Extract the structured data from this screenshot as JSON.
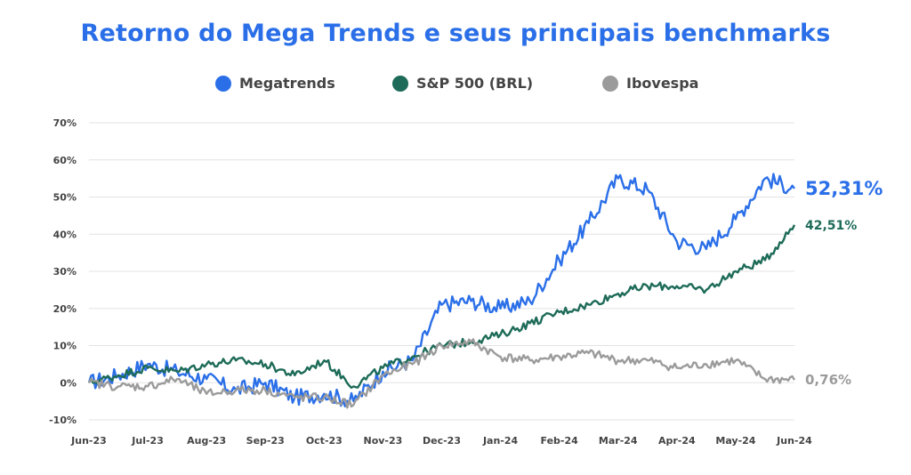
{
  "page": {
    "title": "Retorno do Mega Trends e seus principais benchmarks"
  },
  "chart_data": {
    "type": "line",
    "title": "Retorno do Mega Trends e seus principais benchmarks",
    "xlabel": "",
    "ylabel": "",
    "ylim": [
      -10,
      70
    ],
    "y_ticks": [
      "-10%",
      "0%",
      "10%",
      "20%",
      "30%",
      "40%",
      "50%",
      "60%",
      "70%"
    ],
    "x_ticks": [
      "Jun-23",
      "Jul-23",
      "Aug-23",
      "Sep-23",
      "Oct-23",
      "Nov-23",
      "Dec-23",
      "Jan-24",
      "Feb-24",
      "Mar-24",
      "Apr-24",
      "May-24",
      "Jun-24"
    ],
    "grid": true,
    "legend_position": "top-center",
    "series": [
      {
        "name": "Megatrends",
        "color": "#2b6fe8",
        "end_label": "52,31%",
        "x": [
          "Jun-23",
          "Jun-23",
          "Jul-23",
          "Jul-23",
          "Aug-23",
          "Aug-23",
          "Sep-23",
          "Sep-23",
          "Oct-23",
          "Oct-23",
          "Nov-23",
          "Nov-23",
          "Dec-23",
          "Dec-23",
          "Jan-24",
          "Jan-24",
          "Feb-24",
          "Feb-24",
          "Mar-24",
          "Mar-24",
          "Apr-24",
          "Apr-24",
          "May-24",
          "May-24",
          "Jun-24"
        ],
        "values": [
          0,
          2,
          5,
          3,
          1,
          -2,
          0,
          -4,
          -3,
          -5,
          3,
          6,
          21,
          22,
          20,
          22,
          33,
          43,
          55,
          52,
          38,
          36,
          44,
          55,
          52.31
        ]
      },
      {
        "name": "S&P 500 (BRL)",
        "color": "#1d6b58",
        "end_label": "42,51%",
        "x": [
          "Jun-23",
          "Jun-23",
          "Jul-23",
          "Jul-23",
          "Aug-23",
          "Aug-23",
          "Sep-23",
          "Sep-23",
          "Oct-23",
          "Oct-23",
          "Nov-23",
          "Nov-23",
          "Dec-23",
          "Dec-23",
          "Jan-24",
          "Jan-24",
          "Feb-24",
          "Feb-24",
          "Mar-24",
          "Mar-24",
          "Apr-24",
          "Apr-24",
          "May-24",
          "May-24",
          "Jun-24"
        ],
        "values": [
          0,
          2,
          4,
          3,
          5,
          6,
          5,
          2,
          6,
          -1,
          4,
          7,
          10,
          11,
          13,
          16,
          19,
          21,
          24,
          26,
          26,
          25,
          30,
          33,
          42.51
        ]
      },
      {
        "name": "Ibovespa",
        "color": "#9b9b9b",
        "end_label": "0,76%",
        "x": [
          "Jun-23",
          "Jun-23",
          "Jul-23",
          "Jul-23",
          "Aug-23",
          "Aug-23",
          "Sep-23",
          "Sep-23",
          "Oct-23",
          "Oct-23",
          "Nov-23",
          "Nov-23",
          "Dec-23",
          "Dec-23",
          "Jan-24",
          "Jan-24",
          "Feb-24",
          "Feb-24",
          "Mar-24",
          "Mar-24",
          "Apr-24",
          "Apr-24",
          "May-24",
          "May-24",
          "Jun-24"
        ],
        "values": [
          0,
          -1,
          -1,
          1,
          -3,
          -2,
          -2,
          -4,
          -4,
          -6,
          2,
          5,
          10,
          11,
          7,
          6,
          7,
          8,
          6,
          6,
          4,
          5,
          6,
          1,
          0.76
        ]
      }
    ]
  }
}
